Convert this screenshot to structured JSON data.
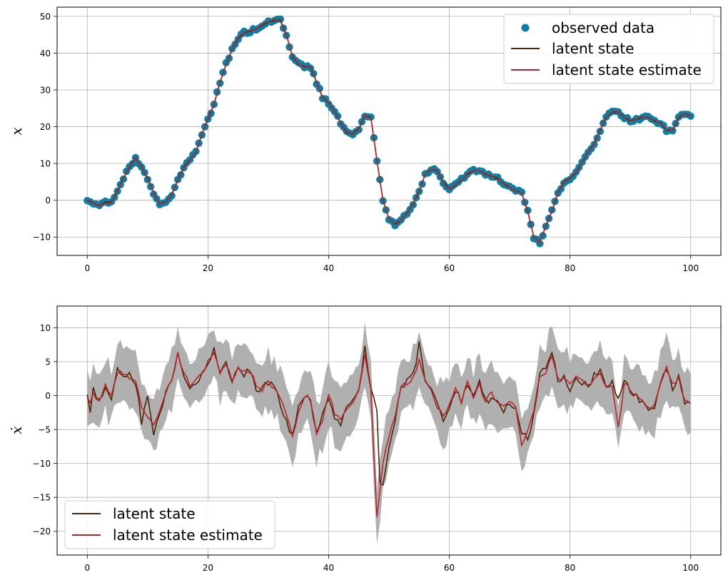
{
  "colors": {
    "observed": "#0e7ea3",
    "latent": "#4f2508",
    "estimate": "#b3262e",
    "band": "#b0b0b0",
    "grid": "#b0b0b0"
  },
  "chart_data": [
    {
      "type": "line",
      "xlim": [
        -5,
        105
      ],
      "ylim": [
        -15,
        52.5
      ],
      "xticks": [
        0,
        20,
        40,
        60,
        80,
        100
      ],
      "yticks": [
        -10,
        0,
        10,
        20,
        30,
        40,
        50
      ],
      "xtick_labels": [
        "0",
        "20",
        "40",
        "60",
        "80",
        "100"
      ],
      "ytick_labels": [
        "−10",
        "0",
        "10",
        "20",
        "30",
        "40",
        "50"
      ],
      "ylabel": "x",
      "grid": true,
      "legend_position": "top-right",
      "keypoints": [
        [
          0,
          0
        ],
        [
          1,
          -0.8
        ],
        [
          2,
          -1.5
        ],
        [
          3,
          -0.5
        ],
        [
          4,
          -0.5
        ],
        [
          5,
          2.5
        ],
        [
          6,
          6
        ],
        [
          7,
          9
        ],
        [
          8,
          11.5
        ],
        [
          9,
          9
        ],
        [
          10,
          6
        ],
        [
          11,
          2
        ],
        [
          12,
          -1
        ],
        [
          13,
          -0.5
        ],
        [
          14,
          1.5
        ],
        [
          15,
          5.5
        ],
        [
          16,
          9
        ],
        [
          17,
          11
        ],
        [
          18,
          13
        ],
        [
          19,
          18
        ],
        [
          20,
          22
        ],
        [
          21,
          26
        ],
        [
          22,
          32
        ],
        [
          23,
          37
        ],
        [
          24,
          41
        ],
        [
          25,
          44
        ],
        [
          26,
          45.5
        ],
        [
          27,
          46
        ],
        [
          28,
          46.5
        ],
        [
          29,
          47.5
        ],
        [
          30,
          48.5
        ],
        [
          31,
          48.8
        ],
        [
          32,
          49
        ],
        [
          33,
          45
        ],
        [
          34,
          39
        ],
        [
          35,
          37
        ],
        [
          36,
          36.3
        ],
        [
          37,
          36.2
        ],
        [
          38,
          32
        ],
        [
          39,
          28
        ],
        [
          40,
          26.5
        ],
        [
          41,
          24
        ],
        [
          42,
          21
        ],
        [
          43,
          18.5
        ],
        [
          44,
          18
        ],
        [
          45,
          19.5
        ],
        [
          46,
          23
        ],
        [
          47,
          22.5
        ],
        [
          48,
          11
        ],
        [
          49,
          0
        ],
        [
          50,
          -5
        ],
        [
          51,
          -6.5
        ],
        [
          52,
          -5.5
        ],
        [
          53,
          -3.5
        ],
        [
          54,
          -1
        ],
        [
          55,
          2.5
        ],
        [
          56,
          7
        ],
        [
          57,
          8.5
        ],
        [
          58,
          8
        ],
        [
          59,
          5
        ],
        [
          60,
          3
        ],
        [
          61,
          4
        ],
        [
          62,
          5.5
        ],
        [
          63,
          7
        ],
        [
          64,
          8
        ],
        [
          65,
          8
        ],
        [
          66,
          7
        ],
        [
          67,
          6.5
        ],
        [
          68,
          6
        ],
        [
          69,
          4.5
        ],
        [
          70,
          3.5
        ],
        [
          71,
          2.5
        ],
        [
          72,
          2
        ],
        [
          73,
          -3
        ],
        [
          74,
          -10
        ],
        [
          75,
          -11.5
        ],
        [
          76,
          -7
        ],
        [
          77,
          -3
        ],
        [
          78,
          2
        ],
        [
          79,
          5
        ],
        [
          80,
          6
        ],
        [
          81,
          7.5
        ],
        [
          82,
          10
        ],
        [
          83,
          13
        ],
        [
          84,
          15.5
        ],
        [
          85,
          19
        ],
        [
          86,
          22.5
        ],
        [
          87,
          24
        ],
        [
          88,
          24
        ],
        [
          89,
          22.5
        ],
        [
          90,
          21.5
        ],
        [
          91,
          22
        ],
        [
          92,
          22.5
        ],
        [
          93,
          22.5
        ],
        [
          94,
          21.5
        ],
        [
          95,
          21
        ],
        [
          96,
          19
        ],
        [
          97,
          19
        ],
        [
          98,
          22.5
        ],
        [
          99,
          23.5
        ],
        [
          100,
          23
        ]
      ],
      "series": [
        {
          "name": "observed data",
          "kind": "scatter",
          "color_key": "observed"
        },
        {
          "name": "latent state",
          "kind": "line",
          "color_key": "latent"
        },
        {
          "name": "latent state estimate",
          "kind": "line",
          "color_key": "estimate"
        }
      ]
    },
    {
      "type": "line",
      "xlim": [
        -5,
        105
      ],
      "ylim": [
        -23.5,
        13.2
      ],
      "xticks": [
        0,
        20,
        40,
        60,
        80,
        100
      ],
      "yticks": [
        -20,
        -15,
        -10,
        -5,
        0,
        5,
        10
      ],
      "xtick_labels": [
        "0",
        "20",
        "40",
        "60",
        "80",
        "100"
      ],
      "ytick_labels": [
        "−20",
        "−15",
        "−10",
        "−5",
        "0",
        "5",
        "10"
      ],
      "ylabel": "ẋ",
      "grid": true,
      "legend_position": "bottom-left",
      "latent_keypoints": [
        [
          0,
          0
        ],
        [
          0.5,
          -2
        ],
        [
          1,
          1
        ],
        [
          2,
          -1
        ],
        [
          3,
          1
        ],
        [
          4,
          -0.5
        ],
        [
          5,
          4
        ],
        [
          6,
          3
        ],
        [
          7,
          3
        ],
        [
          8,
          2
        ],
        [
          9,
          -4
        ],
        [
          10,
          0
        ],
        [
          11,
          -6
        ],
        [
          12,
          -3
        ],
        [
          13,
          0
        ],
        [
          14,
          2
        ],
        [
          15,
          6
        ],
        [
          16,
          3
        ],
        [
          17,
          1
        ],
        [
          18,
          2
        ],
        [
          19,
          3
        ],
        [
          20,
          5
        ],
        [
          21,
          7
        ],
        [
          22,
          3
        ],
        [
          23,
          5
        ],
        [
          24,
          2
        ],
        [
          25,
          4
        ],
        [
          26,
          3
        ],
        [
          27,
          4
        ],
        [
          28,
          1
        ],
        [
          29,
          1
        ],
        [
          30,
          2
        ],
        [
          31,
          1
        ],
        [
          32,
          -1
        ],
        [
          33,
          -4
        ],
        [
          34,
          -6
        ],
        [
          35,
          -2
        ],
        [
          36,
          0
        ],
        [
          37,
          -1
        ],
        [
          38,
          -5
        ],
        [
          39,
          -3
        ],
        [
          40,
          0
        ],
        [
          41,
          -3
        ],
        [
          42,
          -4
        ],
        [
          43,
          -2
        ],
        [
          44,
          -1
        ],
        [
          45,
          1
        ],
        [
          46,
          7
        ],
        [
          47,
          1
        ],
        [
          48,
          -2
        ],
        [
          48.5,
          -12.5
        ],
        [
          49,
          -13
        ],
        [
          50,
          -8
        ],
        [
          51,
          -4
        ],
        [
          52,
          1
        ],
        [
          53,
          2
        ],
        [
          54,
          3
        ],
        [
          55,
          7.5
        ],
        [
          56,
          2
        ],
        [
          57,
          1
        ],
        [
          58,
          -1
        ],
        [
          59,
          -4
        ],
        [
          60,
          -2
        ],
        [
          61,
          1
        ],
        [
          62,
          -1
        ],
        [
          63,
          2
        ],
        [
          64,
          0
        ],
        [
          65,
          2
        ],
        [
          66,
          -1
        ],
        [
          67,
          0
        ],
        [
          68,
          -1
        ],
        [
          69,
          -2
        ],
        [
          70,
          -1
        ],
        [
          71,
          -2
        ],
        [
          72,
          -6
        ],
        [
          73,
          -6
        ],
        [
          74,
          -3
        ],
        [
          75,
          3
        ],
        [
          76,
          4
        ],
        [
          77,
          6.5
        ],
        [
          78,
          2
        ],
        [
          79,
          3
        ],
        [
          80,
          1
        ],
        [
          81,
          3
        ],
        [
          82,
          2
        ],
        [
          83,
          1
        ],
        [
          84,
          3
        ],
        [
          85,
          4
        ],
        [
          86,
          1
        ],
        [
          87,
          2
        ],
        [
          88,
          -1
        ],
        [
          89,
          2
        ],
        [
          90,
          1
        ],
        [
          91,
          0
        ],
        [
          92,
          -1
        ],
        [
          93,
          -2
        ],
        [
          94,
          -2
        ],
        [
          95,
          2
        ],
        [
          96,
          4
        ],
        [
          97,
          1
        ],
        [
          98,
          3
        ],
        [
          99,
          -1
        ],
        [
          100,
          -1.5
        ]
      ],
      "estimate_keypoints": [
        [
          0,
          0
        ],
        [
          0.5,
          -1
        ],
        [
          1,
          0
        ],
        [
          2,
          -0.5
        ],
        [
          3,
          1.5
        ],
        [
          4,
          0
        ],
        [
          5,
          3.5
        ],
        [
          6,
          3
        ],
        [
          7,
          2.5
        ],
        [
          8,
          2.5
        ],
        [
          9,
          -2
        ],
        [
          10,
          -3
        ],
        [
          11,
          -4.5
        ],
        [
          12,
          -2
        ],
        [
          13,
          0.5
        ],
        [
          14,
          2
        ],
        [
          15,
          6
        ],
        [
          16,
          3.5
        ],
        [
          17,
          1.5
        ],
        [
          18,
          2.5
        ],
        [
          19,
          3
        ],
        [
          20,
          5
        ],
        [
          21,
          6.5
        ],
        [
          22,
          3.5
        ],
        [
          23,
          4.5
        ],
        [
          24,
          2.5
        ],
        [
          25,
          4
        ],
        [
          26,
          3.5
        ],
        [
          27,
          3.5
        ],
        [
          28,
          1.5
        ],
        [
          29,
          1
        ],
        [
          30,
          2
        ],
        [
          31,
          1
        ],
        [
          32,
          -0.5
        ],
        [
          33,
          -3
        ],
        [
          34,
          -6
        ],
        [
          35,
          -2.5
        ],
        [
          36,
          0
        ],
        [
          37,
          -0.5
        ],
        [
          38,
          -6
        ],
        [
          39,
          -3.5
        ],
        [
          40,
          0.5
        ],
        [
          41,
          -3
        ],
        [
          42,
          -3.5
        ],
        [
          43,
          -2
        ],
        [
          44,
          -1
        ],
        [
          45,
          0.5
        ],
        [
          46,
          6
        ],
        [
          47,
          1
        ],
        [
          48,
          -18
        ],
        [
          49,
          -10
        ],
        [
          50,
          -6
        ],
        [
          51,
          -3
        ],
        [
          52,
          1.5
        ],
        [
          53,
          1.5
        ],
        [
          54,
          2.5
        ],
        [
          55,
          5.5
        ],
        [
          56,
          2
        ],
        [
          57,
          0.5
        ],
        [
          58,
          -1.5
        ],
        [
          59,
          -3
        ],
        [
          60,
          -1
        ],
        [
          61,
          1
        ],
        [
          62,
          -1
        ],
        [
          63,
          2.5
        ],
        [
          64,
          0
        ],
        [
          65,
          1.5
        ],
        [
          66,
          -1
        ],
        [
          67,
          0.5
        ],
        [
          68,
          -1
        ],
        [
          69,
          -1.5
        ],
        [
          70,
          -1
        ],
        [
          71,
          -1.5
        ],
        [
          72,
          -7
        ],
        [
          73,
          -5.5
        ],
        [
          74,
          -2.5
        ],
        [
          75,
          3
        ],
        [
          76,
          3.5
        ],
        [
          77,
          6
        ],
        [
          78,
          2.5
        ],
        [
          79,
          2.5
        ],
        [
          80,
          1.5
        ],
        [
          81,
          2.5
        ],
        [
          82,
          2
        ],
        [
          83,
          1.5
        ],
        [
          84,
          2.5
        ],
        [
          85,
          3
        ],
        [
          86,
          1.5
        ],
        [
          87,
          1.5
        ],
        [
          88,
          -5
        ],
        [
          89,
          1.5
        ],
        [
          90,
          1
        ],
        [
          91,
          0
        ],
        [
          92,
          -1
        ],
        [
          93,
          -2
        ],
        [
          94,
          -1.5
        ],
        [
          95,
          1.5
        ],
        [
          96,
          4.5
        ],
        [
          97,
          1.5
        ],
        [
          98,
          2.5
        ],
        [
          99,
          -1
        ],
        [
          100,
          -1
        ]
      ],
      "band_half_width": 4,
      "series": [
        {
          "name": "latent state",
          "kind": "line",
          "color_key": "latent"
        },
        {
          "name": "latent state estimate",
          "kind": "line",
          "color_key": "estimate"
        }
      ]
    }
  ]
}
